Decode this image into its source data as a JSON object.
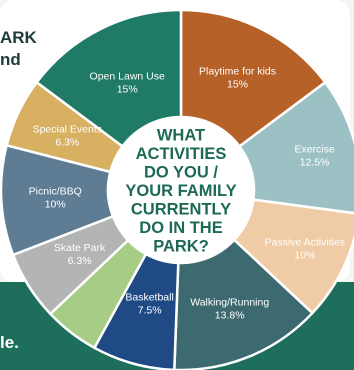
{
  "background": {
    "panel_color": "#ffffff",
    "band_color": "#1d6f5c",
    "page_color": "#f4f4f1",
    "partial_heading_line1": "ARK",
    "partial_heading_line2": "nd",
    "partial_footer": "le."
  },
  "chart_data": {
    "type": "pie",
    "style": "donut",
    "center_text": [
      "WHAT",
      "ACTIVITIES",
      "DO YOU /",
      "YOUR FAMILY",
      "CURRENTLY",
      "DO IN THE",
      "PARK?"
    ],
    "center_text_color": "#1c6a56",
    "slices": [
      {
        "label": "Playtime for kids",
        "value": "15%",
        "percent": 15,
        "color": "#b56128"
      },
      {
        "label": "Exercise",
        "value": "12.5%",
        "percent": 12.5,
        "color": "#9cc1c4"
      },
      {
        "label": "Passive Activities",
        "value": "10%",
        "percent": 10,
        "color": "#f0cca6"
      },
      {
        "label": "Walking/Running",
        "value": "13.8%",
        "percent": 13.8,
        "color": "#3c6a70"
      },
      {
        "label": "Basketball",
        "value": "7.5%",
        "percent": 7.5,
        "color": "#1f4a85"
      },
      {
        "label": "",
        "value": "",
        "percent": 5.0,
        "color": "#a6cc85"
      },
      {
        "label": "Skate Park",
        "value": "6.3%",
        "percent": 6.3,
        "color": "#b3b5b4"
      },
      {
        "label": "Picnic/BBQ",
        "value": "10%",
        "percent": 10,
        "color": "#5e7c94"
      },
      {
        "label": "Special Events",
        "value": "6.3%",
        "percent": 6.3,
        "color": "#d7b062"
      },
      {
        "label": "Open Lawn Use",
        "value": "15%",
        "percent": 15,
        "color": "#1f7a66"
      }
    ]
  }
}
